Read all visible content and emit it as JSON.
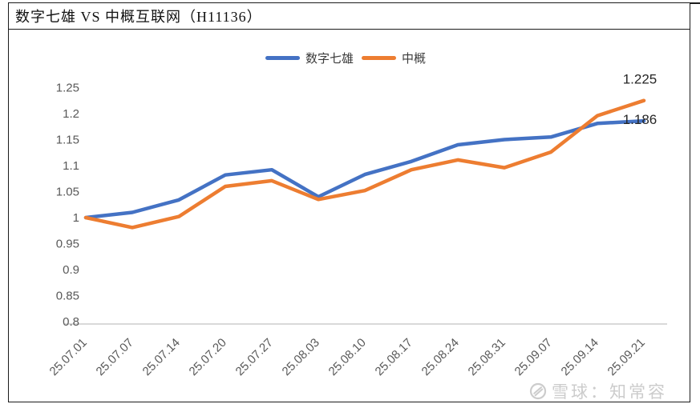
{
  "header": {
    "title": "数字七雄 VS 中概互联网（H11136）"
  },
  "watermark": {
    "logo": "xueqiu-snowball-logo",
    "text": "雪球：知常容"
  },
  "chart_data": {
    "type": "line",
    "title": "数字七雄 VS 中概互联网（H11136）",
    "categories": [
      "25.07.01",
      "25.07.07",
      "25.07.14",
      "25.07.20",
      "25.07.27",
      "25.08.03",
      "25.08.10",
      "25.08.17",
      "25.08.24",
      "25.08.31",
      "25.09.07",
      "25.09.14",
      "25.09.21"
    ],
    "series": [
      {
        "name": "数字七雄",
        "color": "#4472C4",
        "values": [
          1.0,
          1.01,
          1.034,
          1.082,
          1.092,
          1.04,
          1.083,
          1.108,
          1.14,
          1.15,
          1.155,
          1.181,
          1.186
        ],
        "end_label": "1.186"
      },
      {
        "name": "中概",
        "color": "#ED7D31",
        "values": [
          1.0,
          0.981,
          1.002,
          1.06,
          1.071,
          1.035,
          1.052,
          1.092,
          1.111,
          1.096,
          1.126,
          1.196,
          1.225
        ],
        "end_label": "1.225"
      }
    ],
    "ytick_labels": [
      "1.25",
      "1.2",
      "1.15",
      "1.1",
      "1.05",
      "1",
      "0.95",
      "0.9",
      "0.85",
      "0.8"
    ],
    "ylim": [
      0.8,
      1.25
    ],
    "xlabel": "",
    "ylabel": "",
    "grid": false,
    "legend_position": "top-center",
    "axis_label_color": "#595959",
    "axis_line_color": "#D9D9D9",
    "data_label_color": "#262626"
  }
}
